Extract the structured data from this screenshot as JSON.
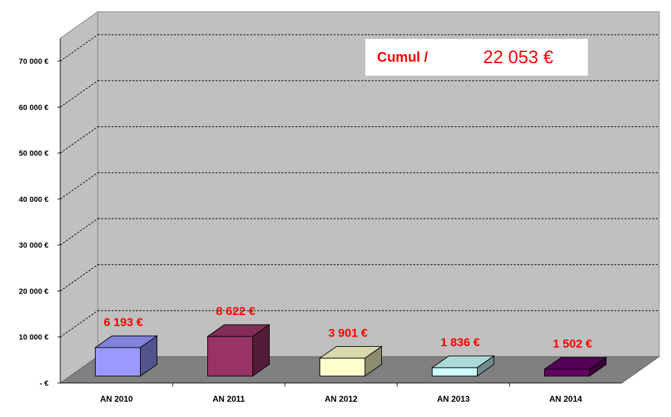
{
  "chart_data": {
    "type": "bar",
    "categories": [
      "AN 2010",
      "AN 2011",
      "AN 2012",
      "AN 2013",
      "AN 2014"
    ],
    "values": [
      6193,
      8622,
      3901,
      1836,
      1502
    ],
    "data_labels": [
      "6 193 €",
      "8 622 €",
      "3 901 €",
      "1 836 €",
      "1 502 €"
    ],
    "ylim": [
      0,
      70000
    ],
    "yticks": [
      0,
      10000,
      20000,
      30000,
      40000,
      50000,
      60000,
      70000
    ],
    "ytick_labels": [
      "-   €",
      "10 000 €",
      "20 000 €",
      "30 000 €",
      "40 000 €",
      "50 000 €",
      "60 000 €",
      "70 000 €"
    ],
    "grid": true,
    "style": "3d-column",
    "bar_colors": [
      "#9999ff",
      "#993366",
      "#ffffcc",
      "#ccffff",
      "#660066"
    ],
    "wall_color": "#c0c0c0",
    "floor_color": "#808080",
    "label_color": "#ff0000"
  },
  "annotation": {
    "label": "Cumul /",
    "value": "22 053 €"
  }
}
